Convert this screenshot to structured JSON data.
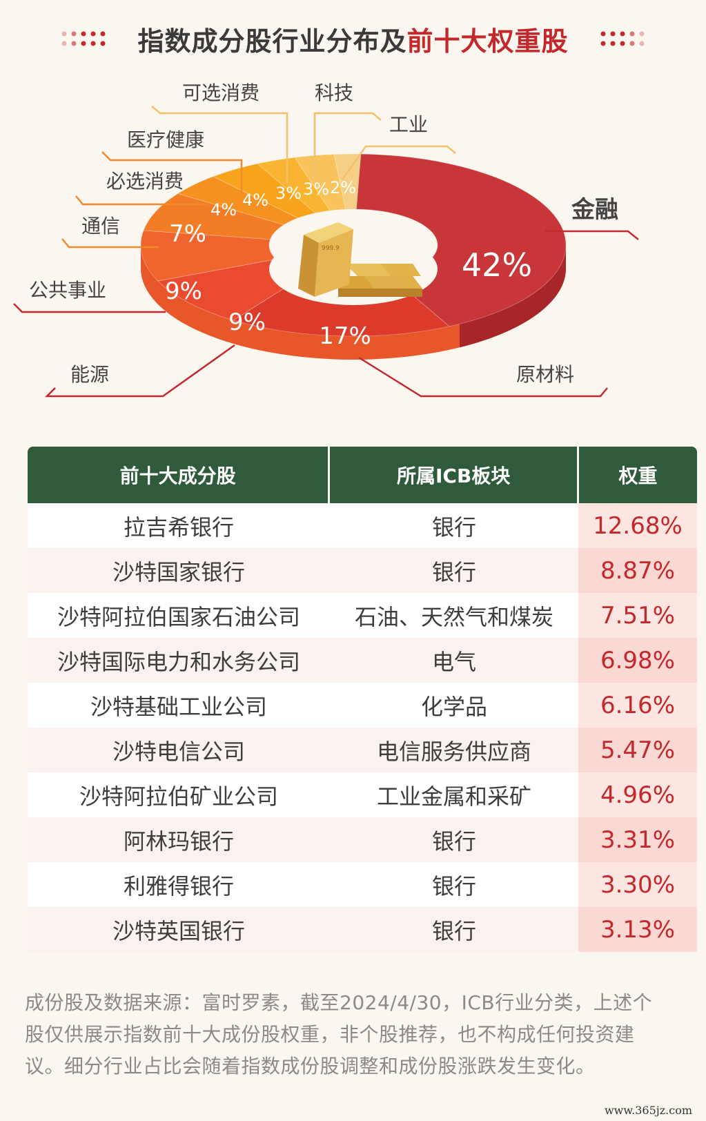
{
  "header": {
    "title_main": "指数成分股行业分布及",
    "title_highlight": "前十大权重股"
  },
  "chart_data": {
    "type": "pie",
    "style": "3d-donut",
    "slices": [
      {
        "label": "金融",
        "value": 42,
        "pct_label": "42%",
        "color": "#c8363a"
      },
      {
        "label": "原材料",
        "value": 17,
        "pct_label": "17%",
        "color": "#dc3a2a"
      },
      {
        "label": "能源",
        "value": 9,
        "pct_label": "9%",
        "color": "#ea4b30"
      },
      {
        "label": "公共事业",
        "value": 9,
        "pct_label": "9%",
        "color": "#f0642e"
      },
      {
        "label": "通信",
        "value": 7,
        "pct_label": "7%",
        "color": "#f27d26"
      },
      {
        "label": "必选消费",
        "value": 4,
        "pct_label": "4%",
        "color": "#f59120"
      },
      {
        "label": "医疗健康",
        "value": 4,
        "pct_label": "4%",
        "color": "#f8a31c"
      },
      {
        "label": "可选消费",
        "value": 3,
        "pct_label": "3%",
        "color": "#f9b531"
      },
      {
        "label": "科技",
        "value": 3,
        "pct_label": "3%",
        "color": "#f8c25c"
      },
      {
        "label": "工业",
        "value": 2,
        "pct_label": "2%",
        "color": "#f6cf86"
      }
    ]
  },
  "table": {
    "headers": [
      "前十大成分股",
      "所属ICB板块",
      "权重"
    ],
    "rows": [
      [
        "拉吉希银行",
        "银行",
        "12.68%"
      ],
      [
        "沙特国家银行",
        "银行",
        "8.87%"
      ],
      [
        "沙特阿拉伯国家石油公司",
        "石油、天然气和煤炭",
        "7.51%"
      ],
      [
        "沙特国际电力和水务公司",
        "电气",
        "6.98%"
      ],
      [
        "沙特基础工业公司",
        "化学品",
        "6.16%"
      ],
      [
        "沙特电信公司",
        "电信服务供应商",
        "5.47%"
      ],
      [
        "沙特阿拉伯矿业公司",
        "工业金属和采矿",
        "4.96%"
      ],
      [
        "阿林玛银行",
        "银行",
        "3.31%"
      ],
      [
        "利雅得银行",
        "银行",
        "3.30%"
      ],
      [
        "沙特英国银行",
        "银行",
        "3.13%"
      ]
    ]
  },
  "footnote": {
    "line1": "成份股及数据来源：富时罗素，截至2024/4/30，ICB行业分类，上述个",
    "line2": "股仅供展示指数前十大成份股权重，非个股推荐，也不构成任何投资建",
    "line3": "议。细分行业占比会随着指数成份股调整和成份股涨跌发生变化。"
  },
  "watermark": "www.365jz.com"
}
